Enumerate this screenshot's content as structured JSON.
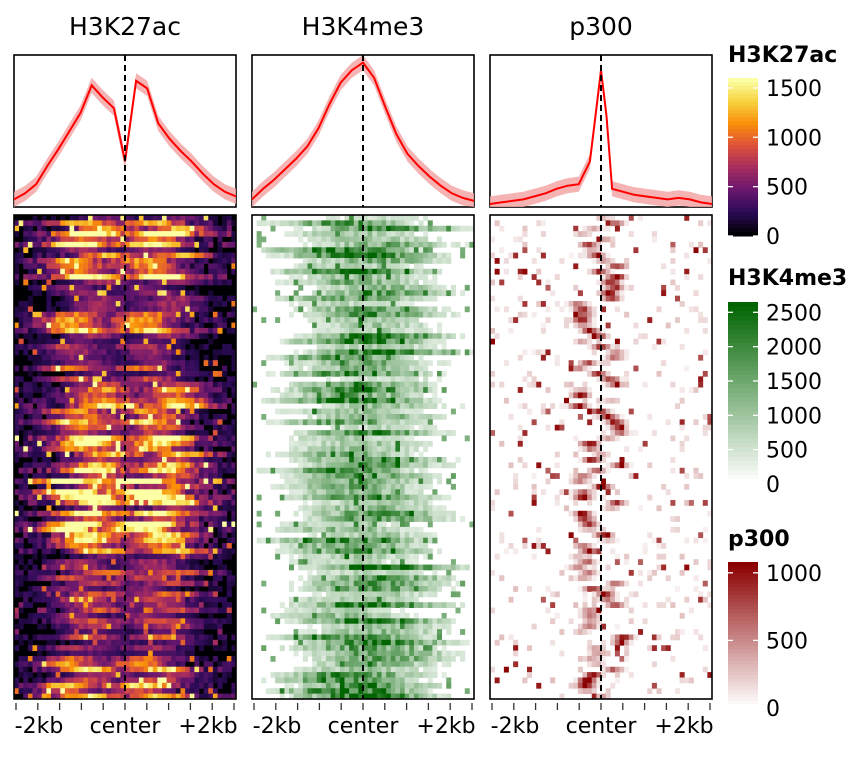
{
  "chart_data": [
    {
      "type": "line",
      "panel": "profile",
      "title": "H3K27ac",
      "x_ticks": [
        "-2kb",
        "center",
        "+2kb"
      ],
      "xlim": [
        -2000,
        2000
      ],
      "center_line": true,
      "line_color": "#ff0000",
      "band_color": "#f4a6a6",
      "x": [
        -2000,
        -1800,
        -1600,
        -1400,
        -1200,
        -1000,
        -800,
        -600,
        -400,
        -200,
        0,
        200,
        400,
        600,
        800,
        1000,
        1200,
        1400,
        1600,
        1800,
        2000
      ],
      "y": [
        0.05,
        0.09,
        0.15,
        0.27,
        0.38,
        0.5,
        0.62,
        0.8,
        0.72,
        0.65,
        0.3,
        0.83,
        0.78,
        0.55,
        0.45,
        0.37,
        0.3,
        0.22,
        0.15,
        0.1,
        0.07
      ]
    },
    {
      "type": "line",
      "panel": "profile",
      "title": "H3K4me3",
      "x_ticks": [
        "-2kb",
        "center",
        "+2kb"
      ],
      "xlim": [
        -2000,
        2000
      ],
      "center_line": true,
      "line_color": "#ff0000",
      "band_color": "#f4a6a6",
      "x": [
        -2000,
        -1800,
        -1600,
        -1400,
        -1200,
        -1000,
        -800,
        -600,
        -400,
        -200,
        0,
        200,
        400,
        600,
        800,
        1000,
        1200,
        1400,
        1600,
        1800,
        2000
      ],
      "y": [
        0.05,
        0.12,
        0.18,
        0.25,
        0.32,
        0.4,
        0.52,
        0.68,
        0.82,
        0.9,
        0.95,
        0.85,
        0.66,
        0.48,
        0.35,
        0.27,
        0.2,
        0.14,
        0.09,
        0.06,
        0.04
      ]
    },
    {
      "type": "line",
      "panel": "profile",
      "title": "p300",
      "x_ticks": [
        "-2kb",
        "center",
        "+2kb"
      ],
      "xlim": [
        -2000,
        2000
      ],
      "center_line": true,
      "line_color": "#ff0000",
      "band_color": "#f4a6a6",
      "x": [
        -2000,
        -1800,
        -1600,
        -1400,
        -1200,
        -1000,
        -800,
        -600,
        -400,
        -200,
        -100,
        0,
        100,
        200,
        400,
        600,
        800,
        1000,
        1200,
        1400,
        1600,
        1800,
        2000
      ],
      "y": [
        0.02,
        0.03,
        0.04,
        0.05,
        0.07,
        0.09,
        0.12,
        0.14,
        0.15,
        0.3,
        0.6,
        0.9,
        0.6,
        0.12,
        0.1,
        0.08,
        0.07,
        0.06,
        0.05,
        0.06,
        0.05,
        0.03,
        0.02
      ]
    },
    {
      "type": "heatmap",
      "title": "H3K27ac",
      "x_ticks": [
        "-2kb",
        "center",
        "+2kb"
      ],
      "legend": {
        "title": "H3K27ac",
        "ticks": [
          1500,
          1000,
          500,
          0
        ],
        "max": 1600
      },
      "colorscale": [
        "#000004",
        "#2c0b57",
        "#6a176e",
        "#a52c60",
        "#dd513a",
        "#f98e09",
        "#f7d13d",
        "#fcffa4"
      ],
      "rows": 90,
      "pattern": "bimodal",
      "seed": 7
    },
    {
      "type": "heatmap",
      "title": "H3K4me3",
      "x_ticks": [
        "-2kb",
        "center",
        "+2kb"
      ],
      "legend": {
        "title": "H3K4me3",
        "ticks": [
          2500,
          2000,
          1500,
          1000,
          500,
          0
        ],
        "max": 2650
      },
      "colorscale": [
        "#ffffff",
        "#006400"
      ],
      "rows": 90,
      "pattern": "broad",
      "seed": 13
    },
    {
      "type": "heatmap",
      "title": "p300",
      "x_ticks": [
        "-2kb",
        "center",
        "+2kb"
      ],
      "legend": {
        "title": "p300",
        "ticks": [
          1000,
          500,
          0
        ],
        "max": 1080
      },
      "colorscale": [
        "#ffffff",
        "#8b0000"
      ],
      "rows": 90,
      "pattern": "sharp",
      "seed": 29
    }
  ]
}
